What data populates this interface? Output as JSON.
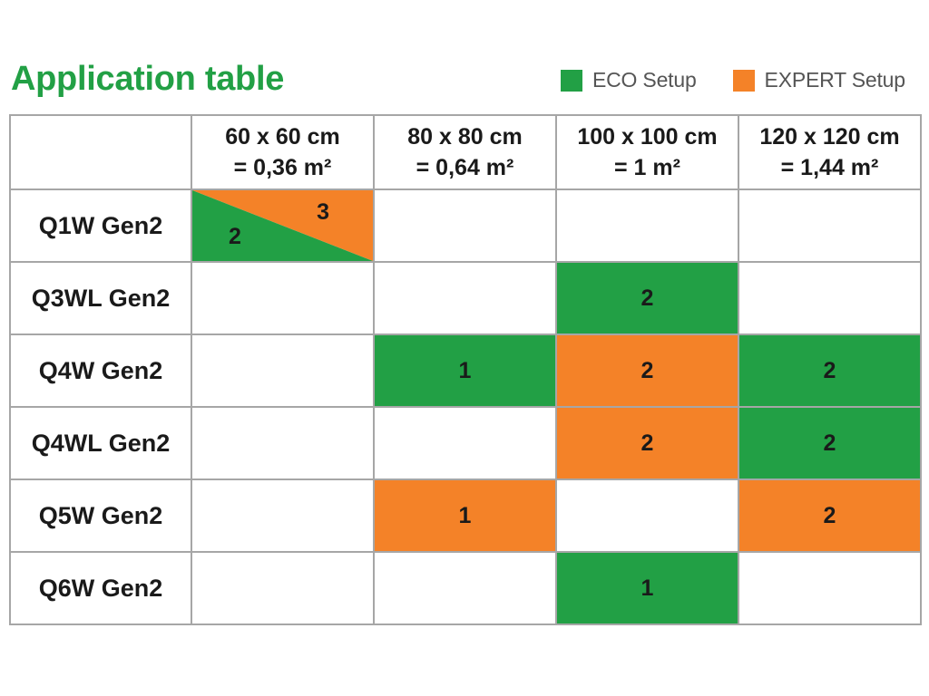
{
  "title": "Application table",
  "legend": [
    {
      "label": "ECO Setup",
      "color": "#22a045"
    },
    {
      "label": "EXPERT Setup",
      "color": "#f48228"
    }
  ],
  "columns": [
    {
      "line1": "60 x 60 cm",
      "line2": "= 0,36 m²"
    },
    {
      "line1": "80 x 80 cm",
      "line2": "= 0,64 m²"
    },
    {
      "line1": "100 x 100 cm",
      "line2": "= 1 m²"
    },
    {
      "line1": "120 x 120 cm",
      "line2": "= 1,44 m²"
    }
  ],
  "rows": [
    {
      "label": "Q1W Gen2",
      "cells": [
        {
          "type": "split",
          "eco": "2",
          "expert": "3"
        },
        {
          "type": "empty"
        },
        {
          "type": "empty"
        },
        {
          "type": "empty"
        }
      ]
    },
    {
      "label": "Q3WL Gen2",
      "cells": [
        {
          "type": "empty"
        },
        {
          "type": "empty"
        },
        {
          "type": "eco",
          "value": "2"
        },
        {
          "type": "empty"
        }
      ]
    },
    {
      "label": "Q4W Gen2",
      "cells": [
        {
          "type": "empty"
        },
        {
          "type": "eco",
          "value": "1"
        },
        {
          "type": "expert",
          "value": "2"
        },
        {
          "type": "eco",
          "value": "2"
        }
      ]
    },
    {
      "label": "Q4WL Gen2",
      "cells": [
        {
          "type": "empty"
        },
        {
          "type": "empty"
        },
        {
          "type": "expert",
          "value": "2"
        },
        {
          "type": "eco",
          "value": "2"
        }
      ]
    },
    {
      "label": "Q5W Gen2",
      "cells": [
        {
          "type": "empty"
        },
        {
          "type": "expert",
          "value": "1"
        },
        {
          "type": "empty"
        },
        {
          "type": "expert",
          "value": "2"
        }
      ]
    },
    {
      "label": "Q6W Gen2",
      "cells": [
        {
          "type": "empty"
        },
        {
          "type": "empty"
        },
        {
          "type": "eco",
          "value": "1"
        },
        {
          "type": "empty"
        }
      ]
    }
  ]
}
